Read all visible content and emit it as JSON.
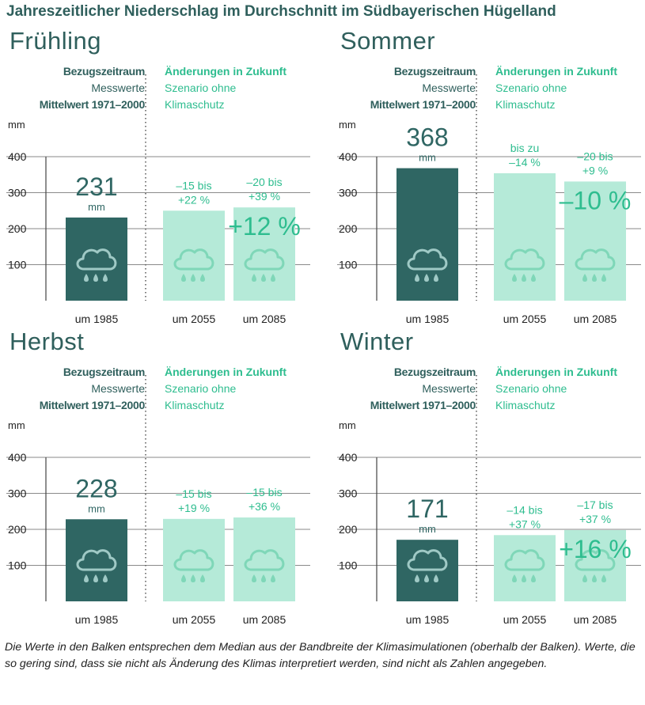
{
  "title": "Jahreszeitlicher Niederschlag im Durchschnitt im Südbayerischen Hügelland",
  "colors": {
    "dark": "#2f6663",
    "light": "#b5ead8",
    "accent": "#2ebd8f",
    "text": "#2f5f5c"
  },
  "icon": "rain-cloud-icon",
  "header": {
    "left_title": "Bezugszeitraum",
    "left_line2": "Messwerte",
    "left_line3": "Mittelwert 1971–2000",
    "right_title": "Änderungen in Zukunft",
    "right_line2": "Szenario ohne",
    "right_line3": "Klimaschutz"
  },
  "footnote": "Die Werte in den Balken entsprechen dem Median aus der Bandbreite der Klimasimulationen (oberhalb der Balken). Werte, die so gering sind, dass sie nicht als Änderung des Klimas interpretiert werden, sind nicht als Zahlen angegeben.",
  "chart_data": [
    {
      "type": "bar",
      "title": "Frühling",
      "ylabel": "mm",
      "ylim": [
        0,
        400
      ],
      "yticks": [
        "100",
        "200",
        "300",
        "400"
      ],
      "categories": [
        "um 1985",
        "um 2055",
        "um 2085"
      ],
      "values": [
        231,
        250,
        259
      ],
      "bar_labels": [
        [
          "231",
          "mm"
        ],
        [
          "–15 bis",
          "+22 %"
        ],
        [
          "–20 bis",
          "+39 %"
        ]
      ],
      "median_labels": [
        "",
        "",
        "+12 %"
      ]
    },
    {
      "type": "bar",
      "title": "Sommer",
      "ylabel": "mm",
      "ylim": [
        0,
        400
      ],
      "yticks": [
        "100",
        "200",
        "300",
        "400"
      ],
      "categories": [
        "um 1985",
        "um 2055",
        "um 2085"
      ],
      "values": [
        368,
        354,
        331
      ],
      "bar_labels": [
        [
          "368",
          "mm"
        ],
        [
          "bis zu",
          "–14 %"
        ],
        [
          "–20 bis",
          "+9 %"
        ]
      ],
      "median_labels": [
        "",
        "",
        "–10 %"
      ]
    },
    {
      "type": "bar",
      "title": "Herbst",
      "ylabel": "mm",
      "ylim": [
        0,
        400
      ],
      "yticks": [
        "100",
        "200",
        "300",
        "400"
      ],
      "categories": [
        "um 1985",
        "um 2055",
        "um 2085"
      ],
      "values": [
        228,
        229,
        233
      ],
      "bar_labels": [
        [
          "228",
          "mm"
        ],
        [
          "–15 bis",
          "+19 %"
        ],
        [
          "–15 bis",
          "+36 %"
        ]
      ],
      "median_labels": [
        "",
        "",
        ""
      ]
    },
    {
      "type": "bar",
      "title": "Winter",
      "ylabel": "mm",
      "ylim": [
        0,
        400
      ],
      "yticks": [
        "100",
        "200",
        "300",
        "400"
      ],
      "categories": [
        "um 1985",
        "um 2055",
        "um 2085"
      ],
      "values": [
        171,
        184,
        198
      ],
      "bar_labels": [
        [
          "171",
          "mm"
        ],
        [
          "–14 bis",
          "+37 %"
        ],
        [
          "–17 bis",
          "+37 %"
        ]
      ],
      "median_labels": [
        "",
        "",
        "+16 %"
      ]
    }
  ]
}
